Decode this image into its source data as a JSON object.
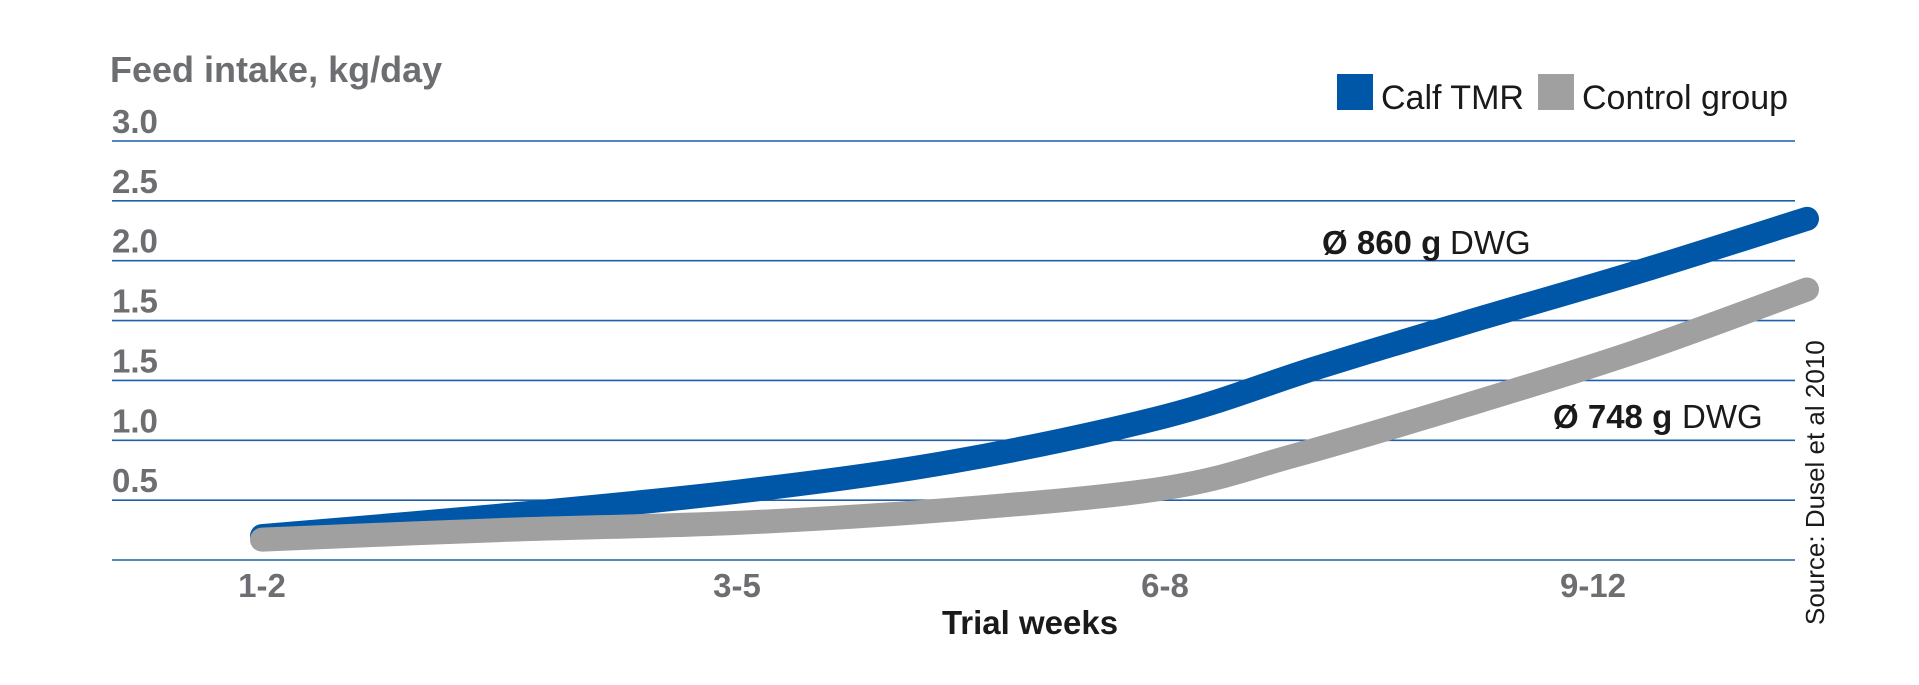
{
  "chart_data": {
    "type": "line",
    "ylabel": "Feed intake, kg/day",
    "xlabel": "Trial weeks",
    "categories": [
      "1-2",
      "3-5",
      "6-8",
      "9-12"
    ],
    "y_tick_labels": [
      "0.5",
      "1.0",
      "1.5",
      "1.5",
      "2.0",
      "2.5",
      "3.0"
    ],
    "ylim": [
      0,
      3.5
    ],
    "grid": true,
    "legend_position": "top-right",
    "series": [
      {
        "name": "Calf TMR",
        "color": "#0057a8",
        "x": [
          1,
          1.5,
          2,
          2.5,
          3,
          3.35,
          3.7,
          4.1,
          4.5
        ],
        "values": [
          0.2,
          0.37,
          0.57,
          0.82,
          1.2,
          1.6,
          1.98,
          2.4,
          2.85
        ],
        "annotation_value": "Ø 860 g",
        "annotation_unit": "DWG"
      },
      {
        "name": "Control group",
        "color": "#a0a0a0",
        "x": [
          1,
          1.5,
          2,
          2.5,
          3,
          3.3,
          3.7,
          4.1,
          4.5
        ],
        "values": [
          0.17,
          0.25,
          0.31,
          0.42,
          0.6,
          0.87,
          1.29,
          1.74,
          2.26
        ],
        "annotation_value": "Ø 748 g",
        "annotation_unit": "DWG"
      }
    ],
    "source": "Source: Dusel et al 2010"
  }
}
